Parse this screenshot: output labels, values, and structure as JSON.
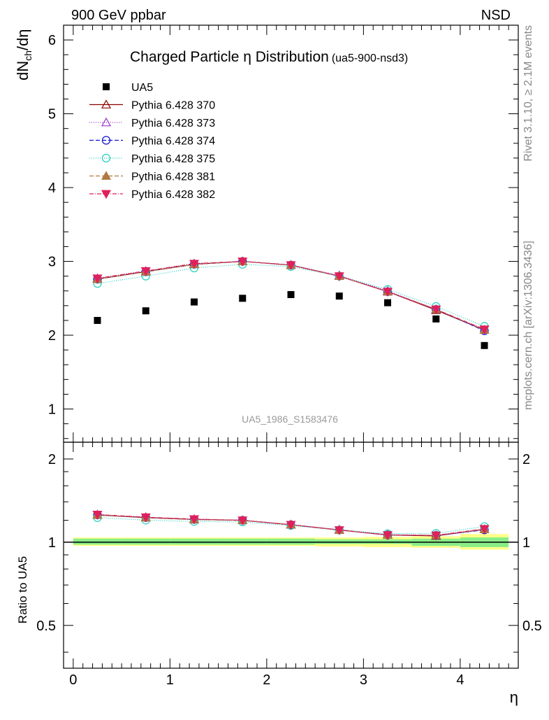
{
  "header": {
    "left": "900 GeV ppbar",
    "right": "NSD"
  },
  "side_text": {
    "rivet": "Rivet 3.1.10, ≥ 2.1M events",
    "mcplots": "mcplots.cern.ch [arXiv:1306.3436]"
  },
  "chart_data": {
    "type": "line",
    "title": "Charged Particle η Distribution",
    "subtitle": "(ua5-900-nsd3)",
    "analysis_label": "UA5_1986_S1583476",
    "xlabel": "η",
    "ylabel": "dN_ch/dη",
    "ratio_ylabel": "Ratio to UA5",
    "xlim": [
      -0.1,
      4.6
    ],
    "ylim": [
      0.55,
      6.2
    ],
    "ratio_ylim": [
      0.35,
      2.3
    ],
    "x_ticks": [
      "0",
      "1",
      "2",
      "3",
      "4"
    ],
    "y_ticks": [
      "1",
      "2",
      "3",
      "4",
      "5",
      "6"
    ],
    "ratio_ticks": [
      "0.5",
      "1",
      "2"
    ],
    "legend_position": "top-left",
    "x": [
      0.25,
      0.75,
      1.25,
      1.75,
      2.25,
      2.75,
      3.25,
      3.75,
      4.25
    ],
    "data": {
      "name": "UA5",
      "values": [
        2.2,
        2.33,
        2.45,
        2.5,
        2.55,
        2.53,
        2.44,
        2.22,
        1.86
      ],
      "color": "#000000"
    },
    "series": [
      {
        "name": "Pythia 6.428 370",
        "color": "#8b0000",
        "dash": "",
        "marker": "triangle-up-open",
        "values": [
          2.76,
          2.86,
          2.96,
          3.0,
          2.95,
          2.8,
          2.59,
          2.34,
          2.07
        ]
      },
      {
        "name": "Pythia 6.428 373",
        "color": "#9932cc",
        "dash": "1 2",
        "marker": "triangle-up-open",
        "values": [
          2.77,
          2.87,
          2.97,
          3.0,
          2.95,
          2.81,
          2.6,
          2.35,
          2.07
        ]
      },
      {
        "name": "Pythia 6.428 374",
        "color": "#1010d0",
        "dash": "6 3",
        "marker": "circle-open",
        "values": [
          2.76,
          2.86,
          2.96,
          3.0,
          2.95,
          2.8,
          2.59,
          2.35,
          2.06
        ]
      },
      {
        "name": "Pythia 6.428 375",
        "color": "#20d0c0",
        "dash": "1 2",
        "marker": "circle-open",
        "values": [
          2.7,
          2.8,
          2.91,
          2.96,
          2.93,
          2.8,
          2.62,
          2.39,
          2.12
        ]
      },
      {
        "name": "Pythia 6.428 381",
        "color": "#b07840",
        "dash": "6 3",
        "marker": "triangle-up-filled",
        "values": [
          2.76,
          2.86,
          2.96,
          3.0,
          2.95,
          2.8,
          2.59,
          2.35,
          2.07
        ]
      },
      {
        "name": "Pythia 6.428 382",
        "color": "#e0205a",
        "dash": "6 2 1 2",
        "marker": "triangle-down-filled",
        "values": [
          2.77,
          2.87,
          2.97,
          3.0,
          2.95,
          2.8,
          2.59,
          2.35,
          2.08
        ]
      }
    ],
    "ratio_bands": [
      {
        "x": [
          0,
          0.5
        ],
        "inner": [
          0.98,
          1.03
        ],
        "outer": [
          0.97,
          1.04
        ]
      },
      {
        "x": [
          0.5,
          1.0
        ],
        "inner": [
          0.98,
          1.03
        ],
        "outer": [
          0.97,
          1.04
        ]
      },
      {
        "x": [
          1.0,
          1.5
        ],
        "inner": [
          0.98,
          1.03
        ],
        "outer": [
          0.97,
          1.04
        ]
      },
      {
        "x": [
          1.5,
          2.0
        ],
        "inner": [
          0.98,
          1.03
        ],
        "outer": [
          0.97,
          1.04
        ]
      },
      {
        "x": [
          2.0,
          2.5
        ],
        "inner": [
          0.98,
          1.03
        ],
        "outer": [
          0.97,
          1.04
        ]
      },
      {
        "x": [
          2.5,
          3.0
        ],
        "inner": [
          0.985,
          1.025
        ],
        "outer": [
          0.965,
          1.04
        ]
      },
      {
        "x": [
          3.0,
          3.5
        ],
        "inner": [
          0.985,
          1.025
        ],
        "outer": [
          0.96,
          1.045
        ]
      },
      {
        "x": [
          3.5,
          4.0
        ],
        "inner": [
          0.97,
          1.03
        ],
        "outer": [
          0.955,
          1.05
        ]
      },
      {
        "x": [
          4.0,
          4.5
        ],
        "inner": [
          0.96,
          1.04
        ],
        "outer": [
          0.94,
          1.07
        ]
      }
    ]
  }
}
